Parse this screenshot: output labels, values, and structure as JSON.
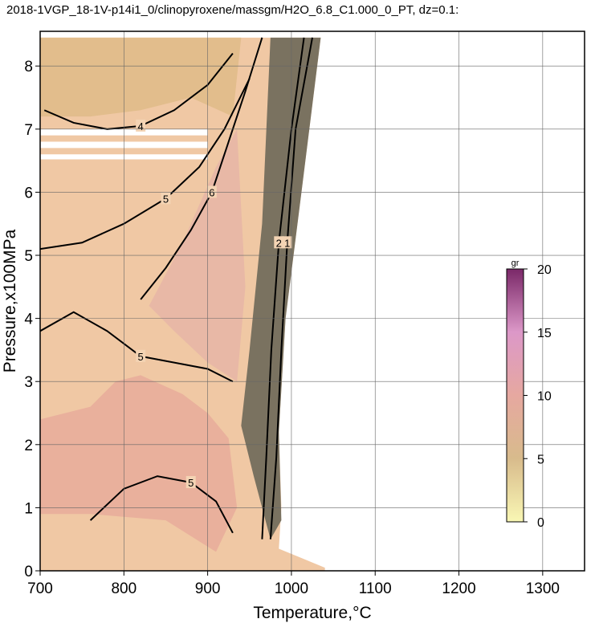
{
  "chart_data": {
    "type": "contour",
    "title": "2018-1VGP_18-1V-p14i1_0/clinopyroxene/massgm/H2O_6.8_C1.000_0_PT, dz=0.1:",
    "x_label": "Temperature,°C",
    "y_label": "Pressure,x100MPa",
    "xlim": [
      700,
      1350
    ],
    "ylim": [
      0,
      8.55
    ],
    "xticks": [
      700,
      800,
      900,
      1000,
      1100,
      1200,
      1300
    ],
    "yticks": [
      0,
      1,
      2,
      3,
      4,
      5,
      6,
      7,
      8
    ],
    "grid": true,
    "regions": [
      {
        "color": "#f0c8a4",
        "x": [
          700,
          700,
          1035,
          1012,
          993,
          985,
          988,
          985,
          1040,
          1040
        ],
        "y": [
          0,
          8.45,
          8.45,
          6,
          4,
          2.2,
          1.0,
          0.35,
          0.05,
          0
        ]
      },
      {
        "color": "#e2bd8c",
        "x": [
          700,
          700,
          940,
          930,
          880,
          820,
          760,
          700
        ],
        "y": [
          7.2,
          8.45,
          8.45,
          7.2,
          7.5,
          7.3,
          7.2,
          7.2
        ]
      },
      {
        "color": "#e9b09c",
        "x": [
          700,
          700,
          760,
          790,
          820,
          870,
          900,
          925,
          935,
          910,
          850,
          760
        ],
        "y": [
          0.9,
          2.4,
          2.6,
          3.0,
          3.1,
          2.8,
          2.5,
          2.1,
          1.0,
          0.3,
          0.8,
          0.9
        ]
      },
      {
        "color": "#e8b8a6",
        "x": [
          830,
          870,
          910,
          935,
          945,
          935,
          900,
          860
        ],
        "y": [
          4.2,
          5.2,
          6.4,
          7.0,
          4.5,
          3.0,
          3.3,
          3.8
        ]
      },
      {
        "color": "#7a7260",
        "x": [
          975,
          1035,
          1012,
          993,
          985,
          988,
          975,
          955,
          940,
          950,
          965
        ],
        "y": [
          8.45,
          8.45,
          6,
          4,
          2.2,
          0.8,
          0.5,
          1.5,
          2.3,
          3.5,
          5.5
        ]
      },
      {
        "color": "#ffffff",
        "x": [
          700,
          900,
          900,
          700
        ],
        "y": [
          6.9,
          6.9,
          7.0,
          7.0
        ]
      },
      {
        "color": "#ffffff",
        "x": [
          700,
          900,
          900,
          700
        ],
        "y": [
          6.7,
          6.7,
          6.8,
          6.8
        ]
      },
      {
        "color": "#ffffff",
        "x": [
          700,
          900,
          900,
          700
        ],
        "y": [
          6.52,
          6.52,
          6.6,
          6.6
        ]
      }
    ],
    "contours": [
      {
        "level": 4,
        "x": [
          705,
          740,
          780,
          820,
          860,
          900,
          930
        ],
        "y": [
          7.3,
          7.1,
          7.0,
          7.05,
          7.3,
          7.7,
          8.2
        ]
      },
      {
        "level": 5,
        "x": [
          700,
          750,
          800,
          850,
          890,
          920,
          950
        ],
        "y": [
          5.1,
          5.2,
          5.5,
          5.9,
          6.4,
          7.0,
          7.8
        ]
      },
      {
        "level": 5,
        "x": [
          700,
          740,
          780,
          820,
          860,
          900,
          930
        ],
        "y": [
          3.8,
          4.1,
          3.8,
          3.4,
          3.3,
          3.2,
          3.0
        ]
      },
      {
        "level": 6,
        "x": [
          820,
          850,
          880,
          905,
          925,
          945,
          965
        ],
        "y": [
          4.3,
          4.8,
          5.4,
          6.0,
          6.8,
          7.6,
          8.45
        ]
      },
      {
        "level": 5,
        "x": [
          760,
          800,
          840,
          880,
          910,
          930
        ],
        "y": [
          0.8,
          1.3,
          1.5,
          1.4,
          1.1,
          0.6
        ]
      },
      {
        "level": 2,
        "x": [
          965,
          970,
          976,
          985,
          1000,
          1015
        ],
        "y": [
          0.5,
          1.8,
          3.5,
          5.2,
          7.0,
          8.45
        ]
      },
      {
        "level": 1,
        "x": [
          975,
          982,
          988,
          995,
          1005,
          1025
        ],
        "y": [
          0.5,
          1.8,
          3.5,
          5.2,
          7.0,
          8.45
        ]
      }
    ],
    "colorbar": {
      "label": "gr",
      "lim": [
        0,
        20
      ],
      "ticks": [
        0,
        5,
        10,
        15,
        20
      ],
      "colors": [
        "#f9f7b4",
        "#d8bb8c",
        "#e6a8a0",
        "#dc98c8",
        "#7a2868"
      ]
    }
  }
}
